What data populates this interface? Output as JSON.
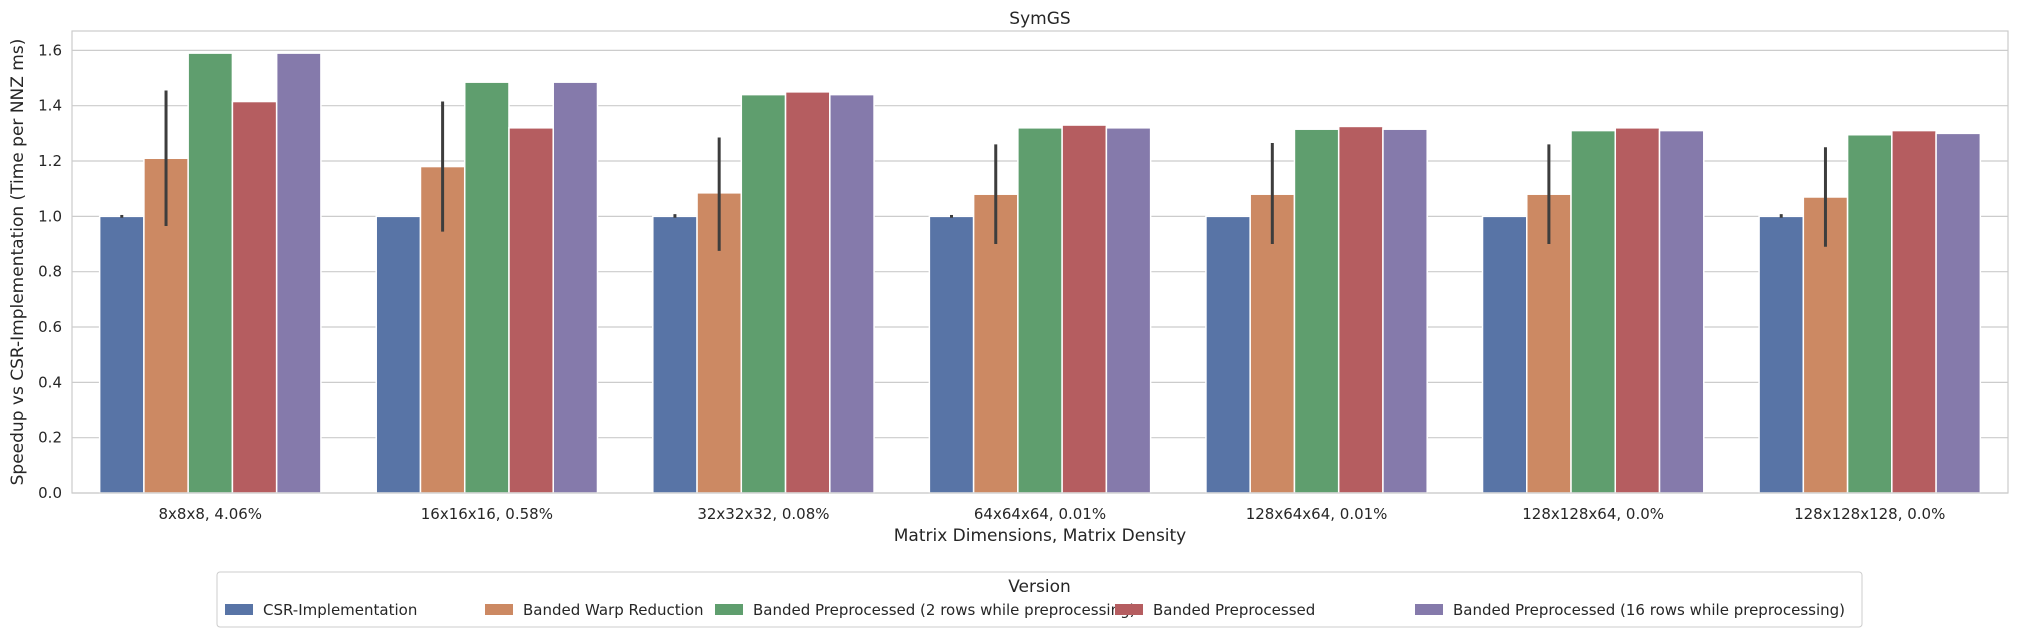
{
  "chart_data": {
    "type": "bar",
    "title": "SymGS",
    "xlabel": "Matrix Dimensions, Matrix Density",
    "ylabel": "Speedup vs CSR-Implementation (Time per NNZ ms)",
    "ylim": [
      0,
      1.67
    ],
    "yticks": [
      0.0,
      0.2,
      0.4,
      0.6,
      0.8,
      1.0,
      1.2,
      1.4,
      1.6
    ],
    "ytick_labels": [
      "0.0",
      "0.2",
      "0.4",
      "0.6",
      "0.8",
      "1.0",
      "1.2",
      "1.4",
      "1.6"
    ],
    "grid": "horizontal",
    "legend_title": "Version",
    "legend_position": "bottom-center",
    "categories": [
      "8x8x8, 4.06%",
      "16x16x16, 0.58%",
      "32x32x32, 0.08%",
      "64x64x64, 0.01%",
      "128x64x64, 0.01%",
      "128x128x64, 0.0%",
      "128x128x128, 0.0%"
    ],
    "series": [
      {
        "name": "CSR-Implementation",
        "color": "#5874a6",
        "values": [
          1.0,
          1.0,
          1.0,
          1.0,
          1.0,
          1.0,
          1.0
        ],
        "error_low": [
          0.995,
          1.0,
          0.995,
          0.995,
          1.0,
          1.0,
          0.995
        ],
        "error_high": [
          1.005,
          1.0,
          1.008,
          1.005,
          1.0,
          1.0,
          1.008
        ]
      },
      {
        "name": "Banded Warp Reduction",
        "color": "#cc8963",
        "values": [
          1.21,
          1.18,
          1.085,
          1.08,
          1.08,
          1.08,
          1.07
        ],
        "error_low": [
          0.965,
          0.945,
          0.875,
          0.9,
          0.9,
          0.9,
          0.89
        ],
        "error_high": [
          1.455,
          1.415,
          1.285,
          1.26,
          1.265,
          1.26,
          1.25
        ]
      },
      {
        "name": "Banded Preprocessed (2 rows while preprocessing)",
        "color": "#5f9e6e",
        "values": [
          1.59,
          1.485,
          1.44,
          1.32,
          1.315,
          1.31,
          1.295
        ]
      },
      {
        "name": "Banded Preprocessed",
        "color": "#b55d60",
        "values": [
          1.415,
          1.32,
          1.45,
          1.33,
          1.325,
          1.32,
          1.31
        ]
      },
      {
        "name": "Banded Preprocessed (16 rows while preprocessing)",
        "color": "#857aab",
        "values": [
          1.59,
          1.485,
          1.44,
          1.32,
          1.315,
          1.31,
          1.3
        ]
      }
    ]
  }
}
